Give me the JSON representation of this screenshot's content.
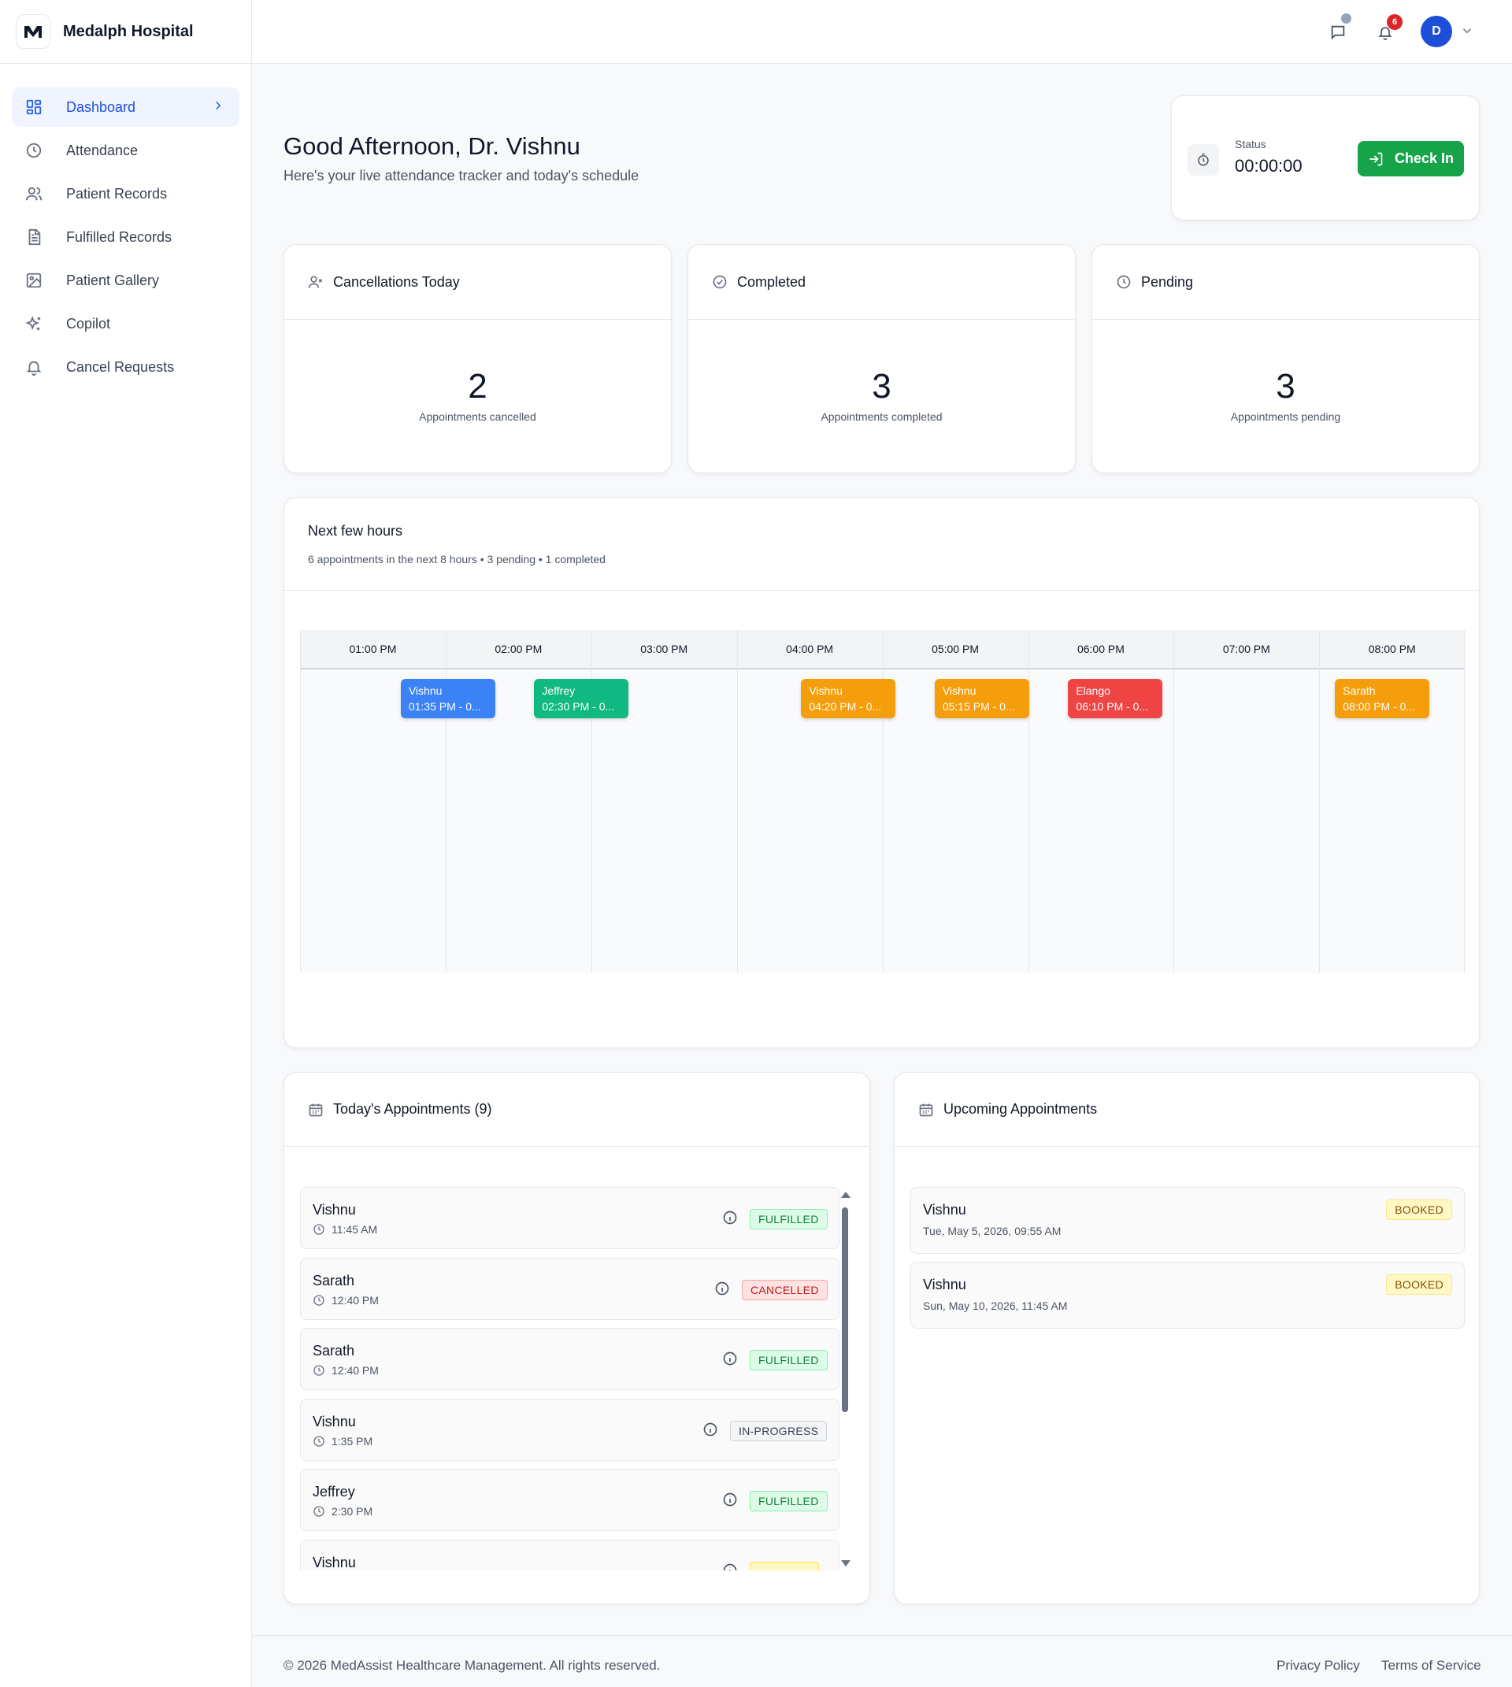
{
  "brand": {
    "name": "Medalph Hospital"
  },
  "sidebar": {
    "items": [
      {
        "label": "Dashboard",
        "icon": "dashboard-grid-icon",
        "active": true
      },
      {
        "label": "Attendance",
        "icon": "clock-icon"
      },
      {
        "label": "Patient Records",
        "icon": "users-icon"
      },
      {
        "label": "Fulfilled Records",
        "icon": "document-icon"
      },
      {
        "label": "Patient Gallery",
        "icon": "image-icon"
      },
      {
        "label": "Copilot",
        "icon": "sparkles-icon"
      },
      {
        "label": "Cancel Requests",
        "icon": "bell-icon"
      }
    ]
  },
  "header": {
    "notification_count": "6",
    "avatar_initial": "D"
  },
  "greeting": {
    "title": "Good Afternoon, Dr. Vishnu",
    "subtitle": "Here's your live attendance tracker and today's schedule"
  },
  "status": {
    "label": "Status",
    "time": "00:00:00",
    "button_label": "Check In",
    "button_color": "#16a34a"
  },
  "stats": [
    {
      "title": "Cancellations Today",
      "icon": "user-x-icon",
      "value": "2",
      "caption": "Appointments cancelled"
    },
    {
      "title": "Completed",
      "icon": "check-circle-icon",
      "value": "3",
      "caption": "Appointments completed"
    },
    {
      "title": "Pending",
      "icon": "clock-icon",
      "value": "3",
      "caption": "Appointments pending"
    }
  ],
  "timeline": {
    "title": "Next few hours",
    "subtitle": "6 appointments in the next 8 hours • 3 pending • 1 completed",
    "hours": [
      "01:00 PM",
      "02:00 PM",
      "03:00 PM",
      "04:00 PM",
      "05:00 PM",
      "06:00 PM",
      "07:00 PM",
      "08:00 PM"
    ],
    "events": [
      {
        "name": "Vishnu",
        "time": "01:35 PM - 0...",
        "color": "#3b82f6",
        "hour_index": 0
      },
      {
        "name": "Jeffrey",
        "time": "02:30 PM - 0...",
        "color": "#10b981",
        "hour_index": 1
      },
      {
        "name": "Vishnu",
        "time": "04:20 PM - 0...",
        "color": "#f59e0b",
        "hour_index": 3
      },
      {
        "name": "Vishnu",
        "time": "05:15 PM - 0...",
        "color": "#f59e0b",
        "hour_index": 4
      },
      {
        "name": "Elango",
        "time": "06:10 PM - 0...",
        "color": "#ef4444",
        "hour_index": 5
      },
      {
        "name": "Sarath",
        "time": "08:00 PM - 0...",
        "color": "#f59e0b",
        "hour_index": 7
      }
    ]
  },
  "today": {
    "title": "Today's Appointments (9)",
    "items": [
      {
        "name": "Vishnu",
        "time": "11:45 AM",
        "status": "FULFILLED",
        "kind": "fulfilled"
      },
      {
        "name": "Sarath",
        "time": "12:40 PM",
        "status": "CANCELLED",
        "kind": "cancelled"
      },
      {
        "name": "Sarath",
        "time": "12:40 PM",
        "status": "FULFILLED",
        "kind": "fulfilled"
      },
      {
        "name": "Vishnu",
        "time": "1:35 PM",
        "status": "IN-PROGRESS",
        "kind": "inprogress"
      },
      {
        "name": "Jeffrey",
        "time": "2:30 PM",
        "status": "FULFILLED",
        "kind": "fulfilled"
      },
      {
        "name": "Vishnu",
        "time": "",
        "status": "",
        "kind": "pending"
      }
    ]
  },
  "upcoming": {
    "title": "Upcoming Appointments",
    "items": [
      {
        "name": "Vishnu",
        "date": "Tue, May 5, 2026, 09:55 AM",
        "status": "BOOKED"
      },
      {
        "name": "Vishnu",
        "date": "Sun, May 10, 2026, 11:45 AM",
        "status": "BOOKED"
      }
    ]
  },
  "footer": {
    "copyright": "© 2026 MedAssist Healthcare Management. All rights reserved.",
    "privacy": "Privacy Policy",
    "terms": "Terms of Service"
  }
}
